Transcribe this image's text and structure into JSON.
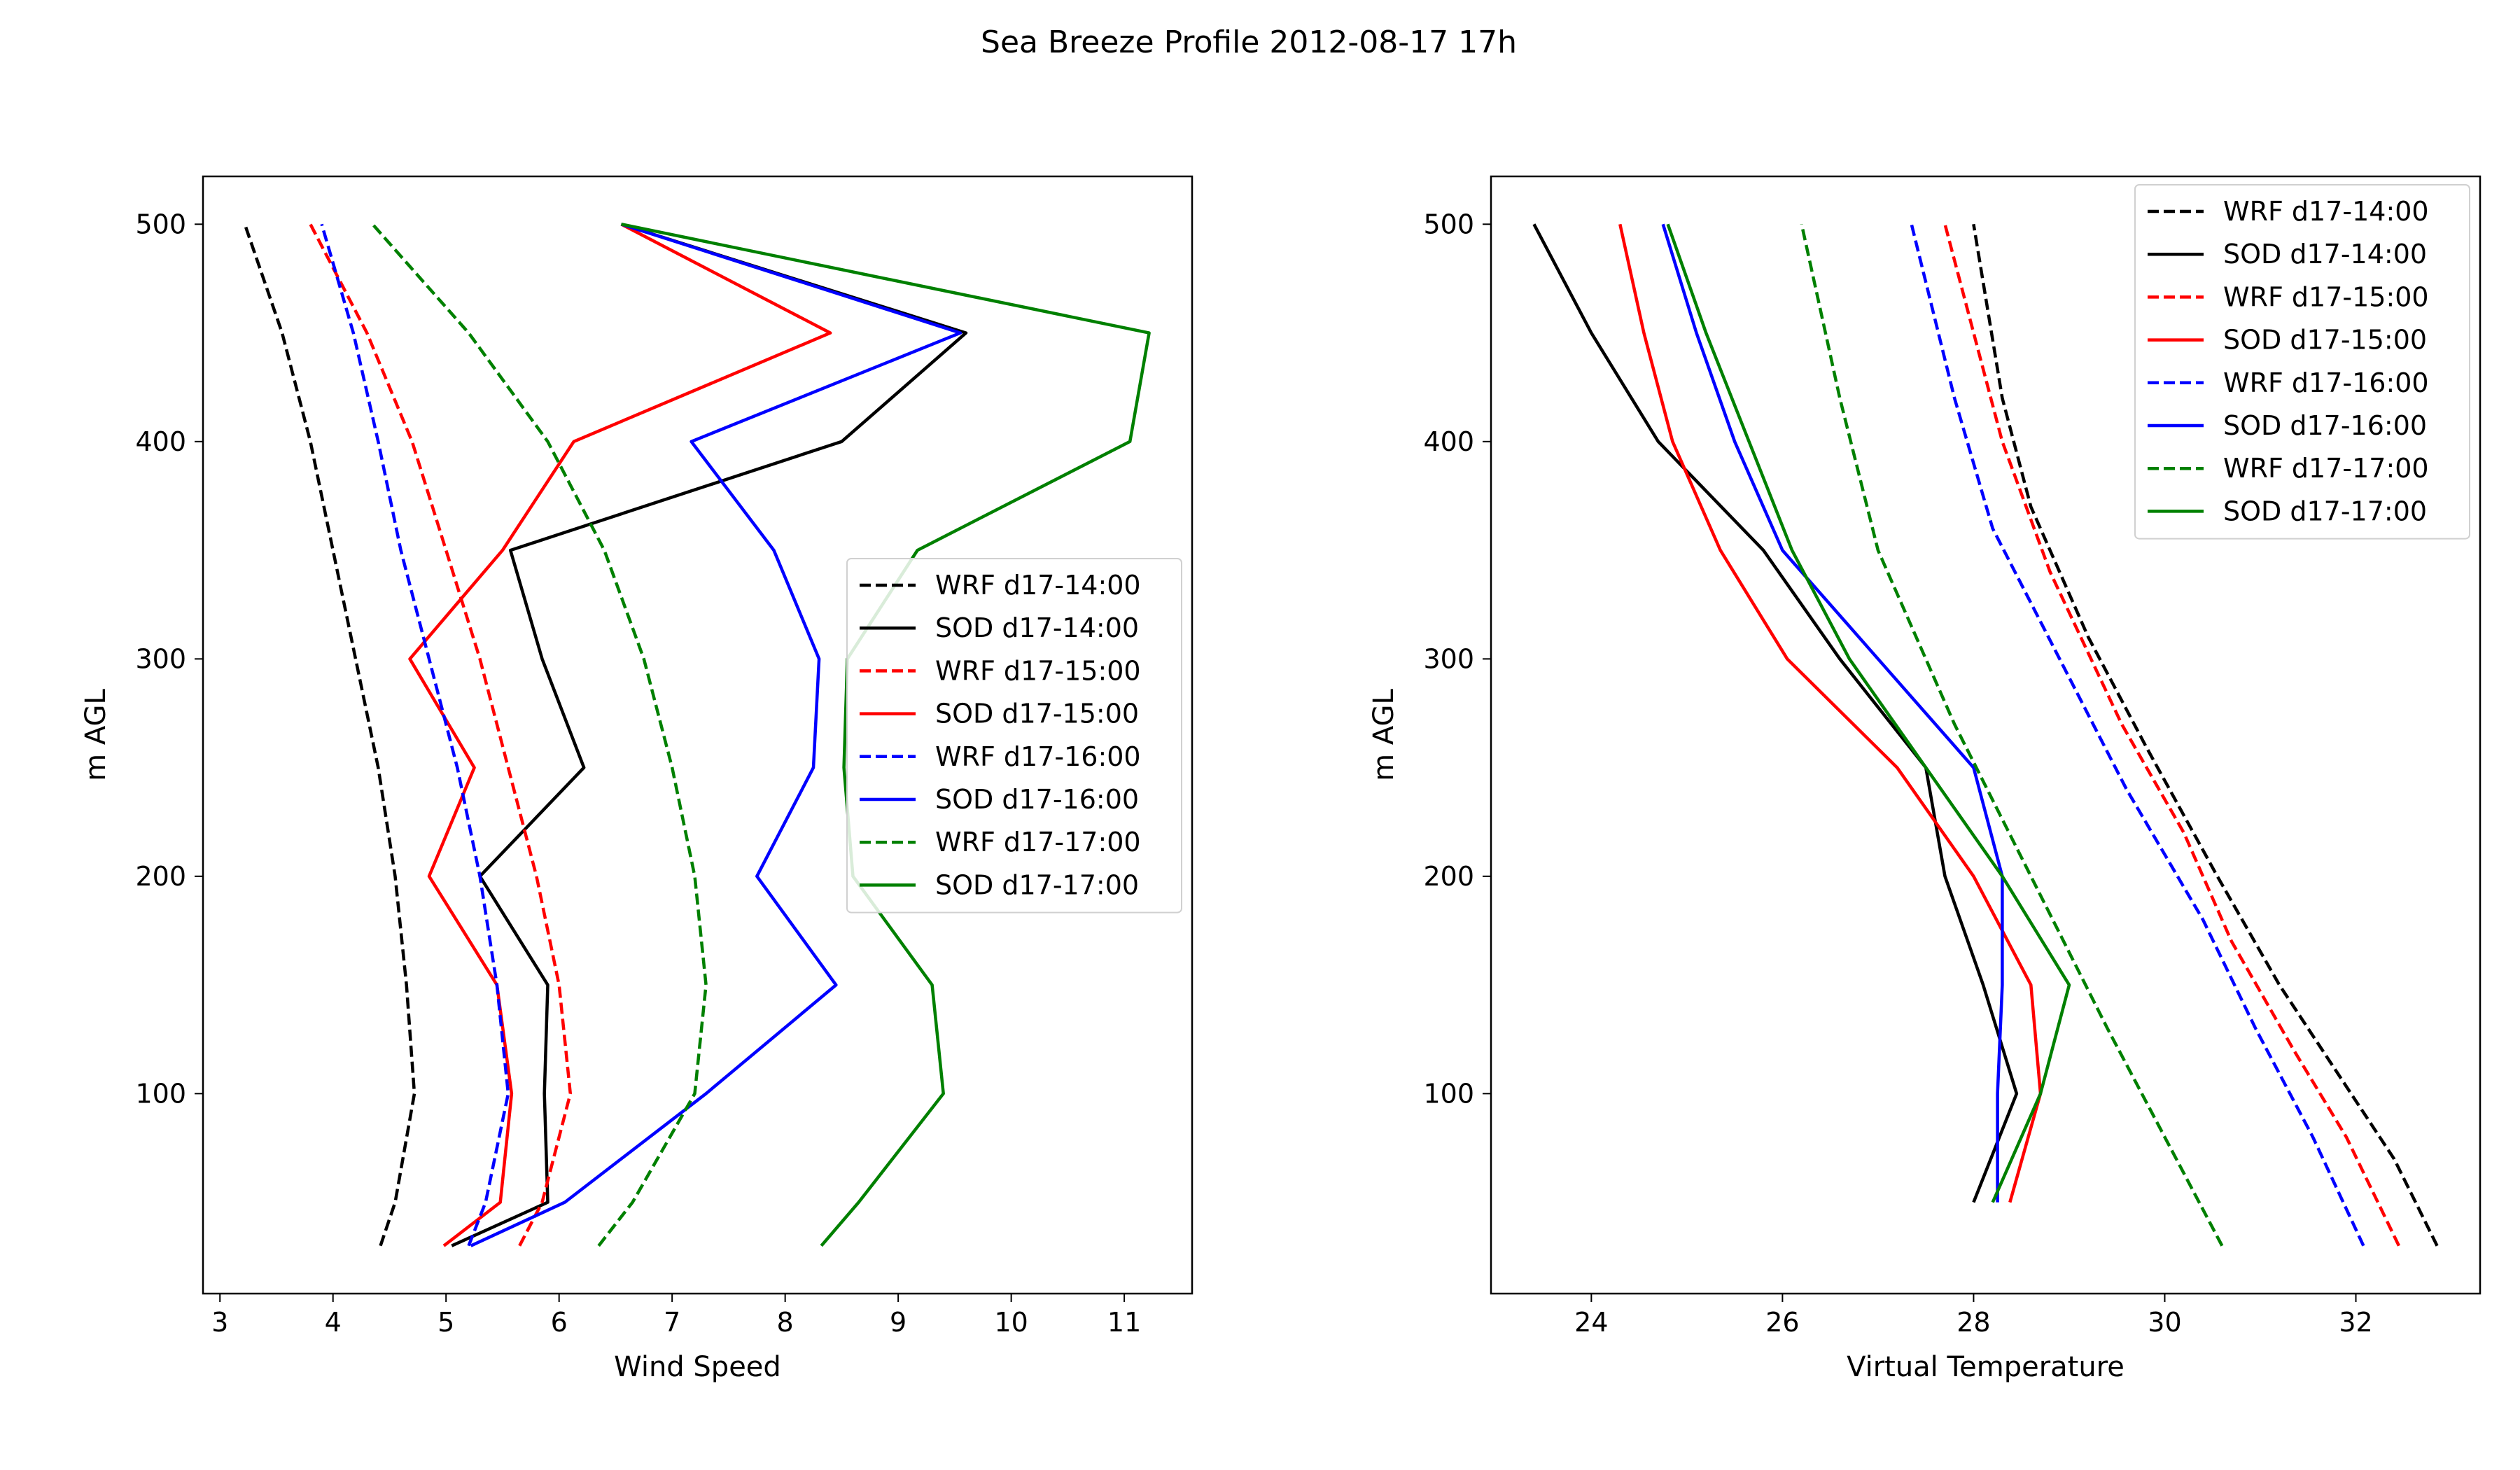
{
  "figure_title": "Sea Breeze Profile 2012-08-17 17h",
  "legend_labels": [
    "WRF d17-14:00",
    "SOD d17-14:00",
    "WRF d17-15:00",
    "SOD d17-15:00",
    "WRF d17-16:00",
    "SOD d17-16:00",
    "WRF d17-17:00",
    "SOD d17-17:00"
  ],
  "chart_data": [
    {
      "type": "line",
      "xlabel": "Wind Speed",
      "ylabel": "m AGL",
      "xlim": [
        2.85,
        11.6
      ],
      "ylim": [
        8,
        522
      ],
      "xticks": [
        3,
        4,
        5,
        6,
        7,
        8,
        9,
        10,
        11
      ],
      "yticks": [
        100,
        200,
        300,
        400,
        500
      ],
      "grid": false,
      "legend_position": "center-right",
      "series": [
        {
          "name": "WRF d17-14:00",
          "color": "#000000",
          "style": "dashed",
          "points": [
            [
              4.42,
              30
            ],
            [
              4.55,
              50
            ],
            [
              4.72,
              100
            ],
            [
              4.65,
              150
            ],
            [
              4.55,
              200
            ],
            [
              4.4,
              250
            ],
            [
              4.2,
              300
            ],
            [
              4.0,
              350
            ],
            [
              3.8,
              400
            ],
            [
              3.55,
              450
            ],
            [
              3.22,
              500
            ]
          ]
        },
        {
          "name": "SOD d17-14:00",
          "color": "#000000",
          "style": "solid",
          "points": [
            [
              5.05,
              30
            ],
            [
              5.9,
              50
            ],
            [
              5.87,
              100
            ],
            [
              5.9,
              150
            ],
            [
              5.3,
              200
            ],
            [
              6.22,
              250
            ],
            [
              5.85,
              300
            ],
            [
              5.57,
              350
            ],
            [
              8.5,
              400
            ],
            [
              9.6,
              450
            ],
            [
              6.55,
              500
            ]
          ]
        },
        {
          "name": "WRF d17-15:00",
          "color": "#ff0000",
          "style": "dashed",
          "points": [
            [
              5.65,
              30
            ],
            [
              5.85,
              50
            ],
            [
              6.1,
              100
            ],
            [
              6.0,
              150
            ],
            [
              5.8,
              200
            ],
            [
              5.55,
              250
            ],
            [
              5.3,
              300
            ],
            [
              5.0,
              350
            ],
            [
              4.7,
              400
            ],
            [
              4.3,
              450
            ],
            [
              3.8,
              500
            ]
          ]
        },
        {
          "name": "SOD d17-15:00",
          "color": "#ff0000",
          "style": "solid",
          "points": [
            [
              4.98,
              30
            ],
            [
              5.48,
              50
            ],
            [
              5.58,
              100
            ],
            [
              5.45,
              150
            ],
            [
              4.85,
              200
            ],
            [
              5.25,
              250
            ],
            [
              4.68,
              300
            ],
            [
              5.5,
              350
            ],
            [
              6.13,
              400
            ],
            [
              8.4,
              450
            ],
            [
              6.55,
              500
            ]
          ]
        },
        {
          "name": "WRF d17-16:00",
          "color": "#0000ff",
          "style": "dashed",
          "points": [
            [
              5.2,
              30
            ],
            [
              5.35,
              50
            ],
            [
              5.55,
              100
            ],
            [
              5.45,
              150
            ],
            [
              5.3,
              200
            ],
            [
              5.1,
              250
            ],
            [
              4.85,
              300
            ],
            [
              4.6,
              350
            ],
            [
              4.4,
              400
            ],
            [
              4.18,
              450
            ],
            [
              3.9,
              500
            ]
          ]
        },
        {
          "name": "SOD d17-16:00",
          "color": "#0000ff",
          "style": "solid",
          "points": [
            [
              5.22,
              30
            ],
            [
              6.05,
              50
            ],
            [
              7.3,
              100
            ],
            [
              8.45,
              150
            ],
            [
              7.75,
              200
            ],
            [
              8.25,
              250
            ],
            [
              8.3,
              300
            ],
            [
              7.9,
              350
            ],
            [
              7.17,
              400
            ],
            [
              9.55,
              450
            ],
            [
              6.55,
              500
            ]
          ]
        },
        {
          "name": "WRF d17-17:00",
          "color": "#008000",
          "style": "dashed",
          "points": [
            [
              6.35,
              30
            ],
            [
              6.65,
              50
            ],
            [
              7.2,
              100
            ],
            [
              7.3,
              150
            ],
            [
              7.2,
              200
            ],
            [
              7.0,
              250
            ],
            [
              6.75,
              300
            ],
            [
              6.4,
              350
            ],
            [
              5.9,
              400
            ],
            [
              5.2,
              450
            ],
            [
              4.35,
              500
            ]
          ]
        },
        {
          "name": "SOD d17-17:00",
          "color": "#008000",
          "style": "solid",
          "points": [
            [
              8.32,
              30
            ],
            [
              8.65,
              50
            ],
            [
              9.4,
              100
            ],
            [
              9.3,
              150
            ],
            [
              8.6,
              200
            ],
            [
              8.52,
              250
            ],
            [
              8.55,
              300
            ],
            [
              9.17,
              350
            ],
            [
              11.05,
              400
            ],
            [
              11.22,
              450
            ],
            [
              6.55,
              500
            ]
          ]
        }
      ]
    },
    {
      "type": "line",
      "xlabel": "Virtual Temperature",
      "ylabel": "m AGL",
      "xlim": [
        22.95,
        33.3
      ],
      "ylim": [
        8,
        522
      ],
      "xticks": [
        24,
        26,
        28,
        30,
        32
      ],
      "yticks": [
        100,
        200,
        300,
        400,
        500
      ],
      "grid": false,
      "legend_position": "upper-right",
      "series": [
        {
          "name": "WRF d17-14:00",
          "color": "#000000",
          "style": "dashed",
          "points": [
            [
              32.85,
              30
            ],
            [
              32.4,
              70
            ],
            [
              31.8,
              110
            ],
            [
              31.2,
              150
            ],
            [
              30.55,
              200
            ],
            [
              29.8,
              260
            ],
            [
              29.2,
              310
            ],
            [
              28.6,
              370
            ],
            [
              28.3,
              420
            ],
            [
              28.0,
              500
            ]
          ]
        },
        {
          "name": "SOD d17-14:00",
          "color": "#000000",
          "style": "solid",
          "points": [
            [
              28.0,
              50
            ],
            [
              28.45,
              100
            ],
            [
              28.1,
              150
            ],
            [
              27.7,
              200
            ],
            [
              27.5,
              250
            ],
            [
              26.6,
              300
            ],
            [
              25.8,
              350
            ],
            [
              24.7,
              400
            ],
            [
              24.0,
              450
            ],
            [
              23.4,
              500
            ]
          ]
        },
        {
          "name": "WRF d17-15:00",
          "color": "#ff0000",
          "style": "dashed",
          "points": [
            [
              32.45,
              30
            ],
            [
              31.9,
              80
            ],
            [
              31.35,
              120
            ],
            [
              30.7,
              170
            ],
            [
              30.2,
              220
            ],
            [
              29.55,
              270
            ],
            [
              28.8,
              340
            ],
            [
              28.3,
              400
            ],
            [
              27.7,
              500
            ]
          ]
        },
        {
          "name": "SOD d17-15:00",
          "color": "#ff0000",
          "style": "solid",
          "points": [
            [
              28.38,
              50
            ],
            [
              28.7,
              100
            ],
            [
              28.6,
              150
            ],
            [
              28.0,
              200
            ],
            [
              27.2,
              250
            ],
            [
              26.05,
              300
            ],
            [
              25.35,
              350
            ],
            [
              24.85,
              400
            ],
            [
              24.55,
              450
            ],
            [
              24.3,
              500
            ]
          ]
        },
        {
          "name": "WRF d17-16:00",
          "color": "#0000ff",
          "style": "dashed",
          "points": [
            [
              32.08,
              30
            ],
            [
              31.55,
              80
            ],
            [
              30.95,
              130
            ],
            [
              30.4,
              180
            ],
            [
              29.6,
              240
            ],
            [
              28.9,
              300
            ],
            [
              28.2,
              360
            ],
            [
              27.8,
              420
            ],
            [
              27.35,
              500
            ]
          ]
        },
        {
          "name": "SOD d17-16:00",
          "color": "#0000ff",
          "style": "solid",
          "points": [
            [
              28.25,
              50
            ],
            [
              28.25,
              100
            ],
            [
              28.3,
              150
            ],
            [
              28.3,
              200
            ],
            [
              28.0,
              250
            ],
            [
              27.0,
              300
            ],
            [
              26.0,
              350
            ],
            [
              25.5,
              400
            ],
            [
              25.1,
              450
            ],
            [
              24.75,
              500
            ]
          ]
        },
        {
          "name": "WRF d17-17:00",
          "color": "#008000",
          "style": "dashed",
          "points": [
            [
              30.6,
              30
            ],
            [
              30.0,
              80
            ],
            [
              29.4,
              130
            ],
            [
              28.6,
              200
            ],
            [
              27.8,
              270
            ],
            [
              27.0,
              350
            ],
            [
              26.6,
              420
            ],
            [
              26.2,
              500
            ]
          ]
        },
        {
          "name": "SOD d17-17:00",
          "color": "#008000",
          "style": "solid",
          "points": [
            [
              28.2,
              50
            ],
            [
              28.7,
              100
            ],
            [
              29.0,
              150
            ],
            [
              28.3,
              200
            ],
            [
              27.5,
              250
            ],
            [
              26.7,
              300
            ],
            [
              26.1,
              350
            ],
            [
              25.65,
              400
            ],
            [
              25.2,
              450
            ],
            [
              24.8,
              500
            ]
          ]
        }
      ]
    }
  ]
}
